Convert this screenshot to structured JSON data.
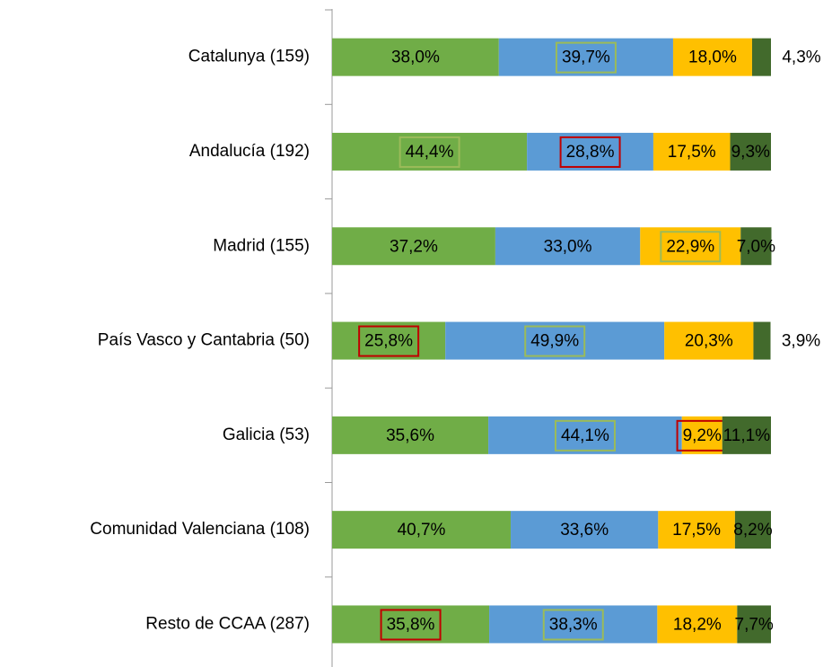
{
  "chart_data": {
    "type": "stacked_bar_horizontal",
    "categories": [
      "Catalunya (159)",
      "Andalucía (192)",
      "Madrid (155)",
      "País Vasco y Cantabria (50)",
      "Galicia (53)",
      "Comunidad Valenciana (108)",
      "Resto de CCAA (287)"
    ],
    "xlim": [
      0,
      100
    ],
    "series": [
      {
        "color": "#70ad47",
        "values": [
          38.0,
          44.4,
          37.2,
          25.8,
          35.6,
          40.7,
          35.8
        ],
        "value_labels": [
          "38,0%",
          "44,4%",
          "37,2%",
          "25,8%",
          "35,6%",
          "40,7%",
          "35,8%"
        ],
        "label_borders": [
          null,
          "#9bbb59",
          null,
          "#c00000",
          null,
          null,
          "#c00000"
        ]
      },
      {
        "color": "#5b9bd5",
        "values": [
          39.7,
          28.8,
          33.0,
          49.9,
          44.1,
          33.6,
          38.3
        ],
        "value_labels": [
          "39,7%",
          "28,8%",
          "33,0%",
          "49,9%",
          "44,1%",
          "33,6%",
          "38,3%"
        ],
        "label_borders": [
          "#9bbb59",
          "#c00000",
          null,
          "#9bbb59",
          "#9bbb59",
          null,
          "#9bbb59"
        ]
      },
      {
        "color": "#ffc000",
        "values": [
          18.0,
          17.5,
          22.9,
          20.3,
          9.2,
          17.5,
          18.2
        ],
        "value_labels": [
          "18,0%",
          "17,5%",
          "22,9%",
          "20,3%",
          "9,2%",
          "17,5%",
          "18,2%"
        ],
        "label_borders": [
          null,
          null,
          "#9bbb59",
          null,
          "#c00000",
          null,
          null
        ]
      },
      {
        "color": "#426a2c",
        "values": [
          4.3,
          9.3,
          7.0,
          3.9,
          11.1,
          8.2,
          7.7
        ],
        "value_labels": [
          "4,3%",
          "9,3%",
          "7,0%",
          "3,9%",
          "11,1%",
          "8,2%",
          "7,7%"
        ],
        "label_borders": [
          null,
          null,
          null,
          null,
          null,
          null,
          null
        ]
      }
    ]
  }
}
